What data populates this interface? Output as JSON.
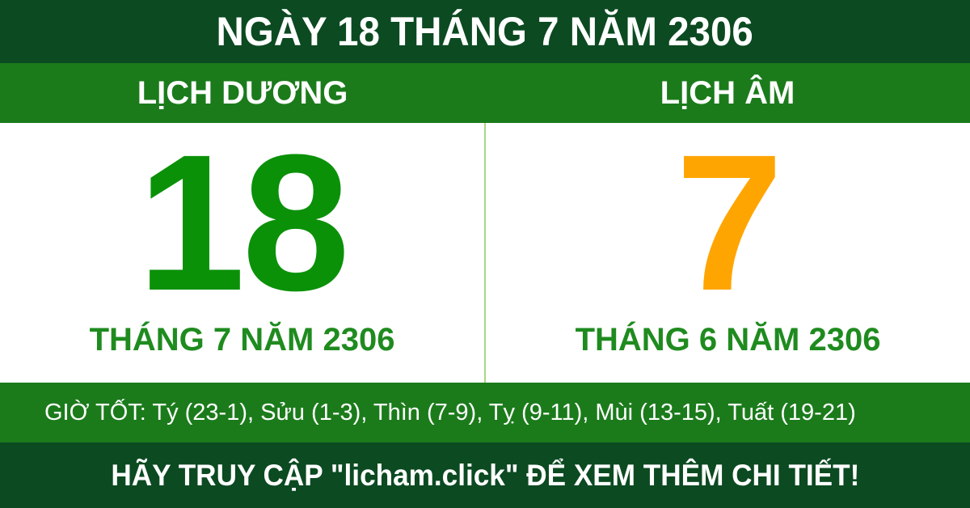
{
  "header": {
    "title": "NGÀY 18 THÁNG 7 NĂM 2306"
  },
  "calendar_tabs": {
    "solar_label": "LỊCH DƯƠNG",
    "lunar_label": "LỊCH ÂM"
  },
  "solar_panel": {
    "day": "18",
    "month_year": "THÁNG 7 NĂM 2306"
  },
  "lunar_panel": {
    "day": "7",
    "month_year": "THÁNG 6 NĂM 2306"
  },
  "good_hours": {
    "text": "GIỜ TỐT: Tý (23-1), Sửu (1-3), Thìn (7-9), Tỵ (9-11), Mùi (13-15), Tuất (19-21)"
  },
  "footer": {
    "cta": "HÃY TRUY CẬP \"licham.click\" ĐỂ XEM THÊM CHI TIẾT!"
  },
  "colors": {
    "dark_green": "#0C4A21",
    "band_green": "#1B7B1B",
    "solar_day_green": "#0A9108",
    "month_green": "#1F8B1F",
    "lunar_day_orange": "#FFA502",
    "divider_green": "#A9D786",
    "text_white": "#FFFFFF"
  }
}
